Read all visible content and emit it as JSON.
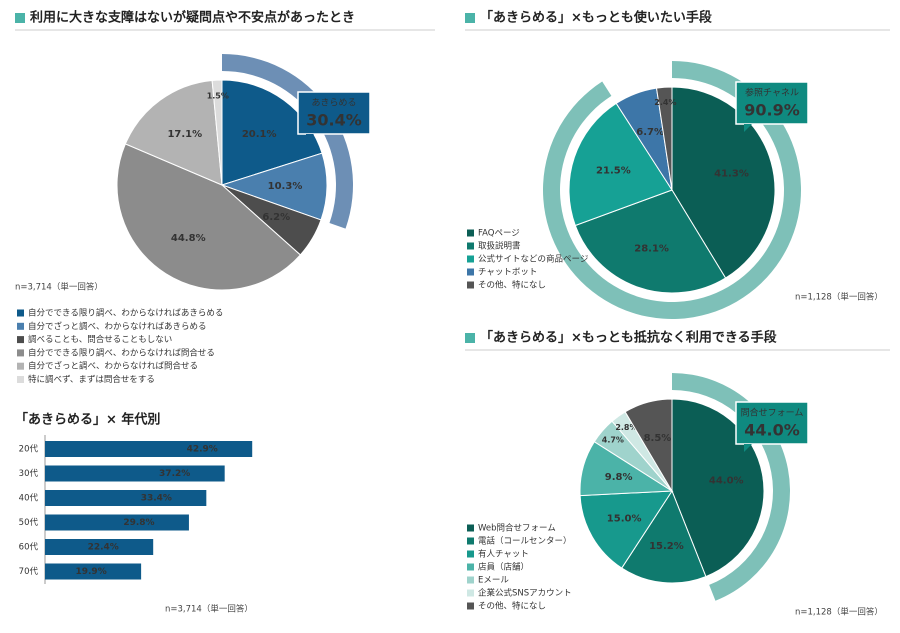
{
  "chart_data": [
    {
      "type": "pie",
      "title": "利用に大きな支障はないが疑問点や不安点があったとき",
      "categories": [
        "自分でできる限り調べ、わからなければあきらめる",
        "自分でざっと調べ、わからなければあきらめる",
        "調べることも、問合せることもしない",
        "自分でできる限り調べ、わからなければ問合せる",
        "自分でざっと調べ、わからなければ問合せる",
        "特に調べず、まずは問合せをする"
      ],
      "values": [
        20.1,
        10.3,
        6.2,
        44.8,
        17.1,
        1.5
      ],
      "value_labels": [
        "20.1%",
        "10.3%",
        "6.2%",
        "44.8%",
        "17.1%",
        "1.5%"
      ],
      "colors": [
        "#0e5a8a",
        "#4a7fae",
        "#4d4d4d",
        "#8c8c8c",
        "#b3b3b3",
        "#dcdcdc"
      ],
      "highlight": {
        "label": "あきらめる",
        "value": 30.4,
        "value_label": "30.4%",
        "color": "#6d8fb5",
        "box_color": "#0e5a8a"
      },
      "note": "n=3,714（単一回答）"
    },
    {
      "type": "barh",
      "title": "「あきらめる」× 年代別",
      "categories": [
        "20代",
        "30代",
        "40代",
        "50代",
        "60代",
        "70代"
      ],
      "values": [
        42.9,
        37.2,
        33.4,
        29.8,
        22.4,
        19.9
      ],
      "value_labels": [
        "42.9%",
        "37.2%",
        "33.4%",
        "29.8%",
        "22.4%",
        "19.9%"
      ],
      "color": "#0e5a8a",
      "note": "n=3,714（単一回答）"
    },
    {
      "type": "pie",
      "title": "「あきらめる」×もっとも使いたい手段",
      "categories": [
        "FAQページ",
        "取扱説明書",
        "公式サイトなどの商品ページ",
        "チャットボット",
        "その他、特になし"
      ],
      "values": [
        41.3,
        28.1,
        21.5,
        6.7,
        2.4
      ],
      "value_labels": [
        "41.3%",
        "28.1%",
        "21.5%",
        "6.7%",
        "2.4%"
      ],
      "colors": [
        "#0b5e55",
        "#0f7a6e",
        "#16a195",
        "#3d76a8",
        "#555555"
      ],
      "highlight": {
        "label": "参照チャネル",
        "value": 90.9,
        "value_label": "90.9%",
        "color": "#7ec0b8",
        "box_color": "#0f8a80"
      },
      "note": "n=1,128（単一回答）"
    },
    {
      "type": "pie",
      "title": "「あきらめる」×もっとも抵抗なく利用できる手段",
      "categories": [
        "Web問合せフォーム",
        "電話（コールセンター）",
        "有人チャット",
        "店員（店舗）",
        "Eメール",
        "企業公式SNSアカウント",
        "その他、特になし"
      ],
      "values": [
        44.0,
        15.2,
        15.0,
        9.8,
        4.7,
        2.8,
        8.5
      ],
      "value_labels": [
        "44.0%",
        "15.2%",
        "15.0%",
        "9.8%",
        "4.7%",
        "2.8%",
        "8.5%"
      ],
      "colors": [
        "#0b5e55",
        "#0f7a6e",
        "#17998d",
        "#4bb3a8",
        "#9fd3cc",
        "#cfe8e4",
        "#555555"
      ],
      "highlight": {
        "label": "問合せフォーム",
        "value": 44.0,
        "value_label": "44.0%",
        "color": "#7ec0b8",
        "box_color": "#0f8a80"
      },
      "note": "n=1,128（単一回答）"
    }
  ]
}
